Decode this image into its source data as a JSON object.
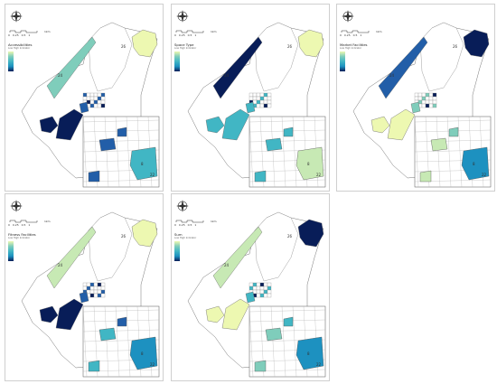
{
  "scale_bar": {
    "ticks": [
      "0",
      "0.25",
      "0.5",
      "1"
    ],
    "unit": "1km"
  },
  "axis_ticks": {
    "top": [
      "",
      "",
      "",
      "",
      ""
    ],
    "bottom": [
      "",
      "",
      "",
      "",
      ""
    ],
    "left": [
      "",
      "",
      "",
      "",
      ""
    ]
  },
  "legend": {
    "subtitle": "Low High Indicator",
    "low": "Low",
    "high": "High"
  },
  "colors": {
    "dark": "#081d58",
    "blue": "#225ea8",
    "mid": "#1d91c0",
    "teal": "#41b6c4",
    "light": "#7fcdbb",
    "pale": "#c7e9b4",
    "cream": "#edf8b1",
    "none": "#ffffff"
  },
  "panels": [
    {
      "title": "Accessibilities",
      "numbers": {
        "a": "24",
        "b": "26",
        "c": "8",
        "d": "22"
      },
      "fills": {
        "north": "none",
        "west": "light",
        "center": "blue",
        "se": "dark",
        "ne": "cream",
        "inset_big": "teal",
        "inset_small": "blue"
      }
    },
    {
      "title": "Space Type",
      "numbers": {
        "a": "24",
        "b": "26",
        "c": "8",
        "d": "22"
      },
      "fills": {
        "north": "none",
        "west": "dark",
        "center": "teal",
        "se": "teal",
        "ne": "cream",
        "inset_big": "pale",
        "inset_small": "teal"
      }
    },
    {
      "title": "Market Facilities",
      "numbers": {
        "a": "24",
        "b": "26",
        "c": "8",
        "d": "22"
      },
      "fills": {
        "north": "none",
        "west": "blue",
        "center": "light",
        "se": "cream",
        "ne": "dark",
        "inset_big": "mid",
        "inset_small": "pale"
      }
    },
    {
      "title": "Fitness Facilities",
      "numbers": {
        "a": "24",
        "b": "26",
        "c": "8",
        "d": "22"
      },
      "fills": {
        "north": "none",
        "west": "pale",
        "center": "blue",
        "se": "dark",
        "ne": "cream",
        "inset_big": "mid",
        "inset_small": "teal"
      }
    },
    {
      "title": "Sum",
      "numbers": {
        "a": "24",
        "b": "26",
        "c": "8",
        "d": "22"
      },
      "fills": {
        "north": "none",
        "west": "pale",
        "center": "teal",
        "se": "cream",
        "ne": "dark",
        "inset_big": "mid",
        "inset_small": "light"
      }
    }
  ]
}
